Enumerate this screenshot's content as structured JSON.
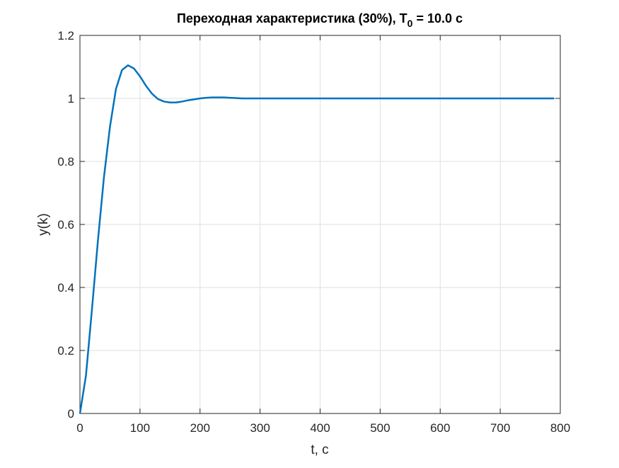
{
  "chart_data": {
    "type": "line",
    "title": [
      "Переходная характеристика (30%), T",
      "0",
      " = 10.0 с"
    ],
    "xlabel": "t, с",
    "ylabel": "y(k)",
    "x": [
      0,
      10,
      20,
      30,
      40,
      50,
      60,
      70,
      80,
      90,
      100,
      110,
      120,
      130,
      140,
      150,
      160,
      170,
      180,
      190,
      200,
      210,
      220,
      230,
      240,
      250,
      260,
      270,
      280,
      290,
      300,
      310,
      320,
      330,
      340,
      350,
      360,
      370,
      380,
      390,
      400,
      410,
      420,
      430,
      440,
      450,
      460,
      470,
      480,
      490,
      500,
      510,
      520,
      530,
      540,
      550,
      560,
      570,
      580,
      590,
      600,
      610,
      620,
      630,
      640,
      650,
      660,
      670,
      680,
      690,
      700,
      710,
      720,
      730,
      740,
      750,
      760,
      770,
      780,
      790
    ],
    "series": [
      {
        "color": "#0072BD",
        "values": [
          0,
          0.12,
          0.33,
          0.55,
          0.75,
          0.91,
          1.03,
          1.09,
          1.105,
          1.095,
          1.07,
          1.04,
          1.015,
          0.998,
          0.99,
          0.987,
          0.987,
          0.99,
          0.994,
          0.997,
          1.0,
          1.002,
          1.003,
          1.003,
          1.003,
          1.002,
          1.001,
          1.0,
          1,
          1,
          1,
          1,
          1,
          1,
          1,
          1,
          1,
          1,
          1,
          1,
          1,
          1,
          1,
          1,
          1,
          1,
          1,
          1,
          1,
          1,
          1,
          1,
          1,
          1,
          1,
          1,
          1,
          1,
          1,
          1,
          1,
          1,
          1,
          1,
          1,
          1,
          1,
          1,
          1,
          1,
          1,
          1,
          1,
          1,
          1,
          1,
          1,
          1,
          1,
          1
        ]
      }
    ],
    "xlim": [
      0,
      800
    ],
    "xticks": [
      0,
      100,
      200,
      300,
      400,
      500,
      600,
      700,
      800
    ],
    "ylim": [
      0,
      1.2
    ],
    "yticks": [
      0,
      0.2,
      0.4,
      0.6,
      0.8,
      1,
      1.2
    ],
    "grid": true
  }
}
